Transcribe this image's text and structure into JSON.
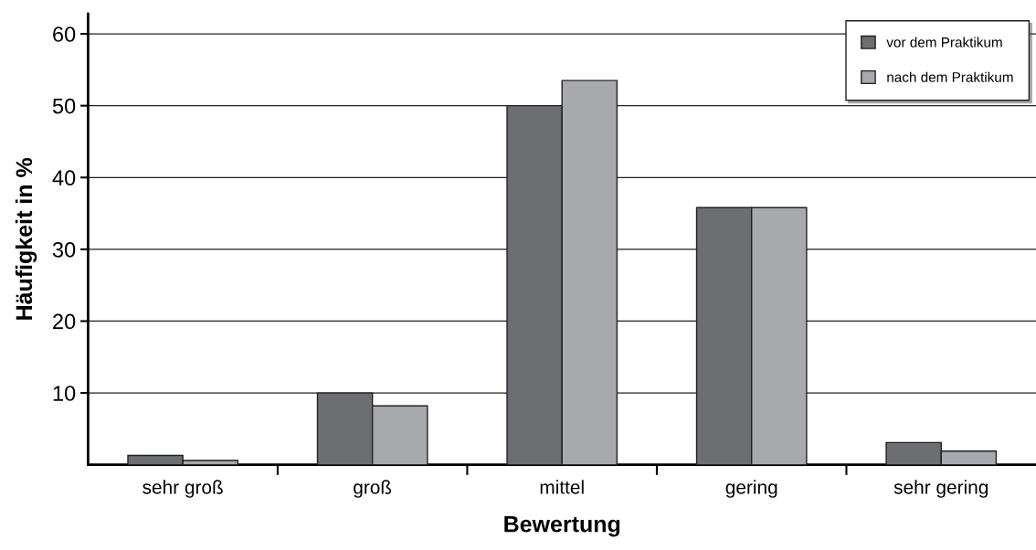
{
  "chart_data": {
    "type": "bar",
    "xlabel": "Bewertung",
    "ylabel": "Häufigkeit in %",
    "categories": [
      "sehr groß",
      "groß",
      "mittel",
      "gering",
      "sehr gering"
    ],
    "series": [
      {
        "name": "vor dem Praktikum",
        "color": "#6d6e71",
        "values": [
          1.3,
          10,
          50,
          35.8,
          3.1
        ]
      },
      {
        "name": "nach dem Praktikum",
        "color": "#a7a9ac",
        "values": [
          0.6,
          8.2,
          53.5,
          35.8,
          1.9
        ]
      }
    ],
    "ylim": [
      0,
      62.8
    ],
    "yticks": [
      10,
      20,
      30,
      40,
      50,
      60
    ],
    "grid": "y",
    "legend": "top right"
  }
}
